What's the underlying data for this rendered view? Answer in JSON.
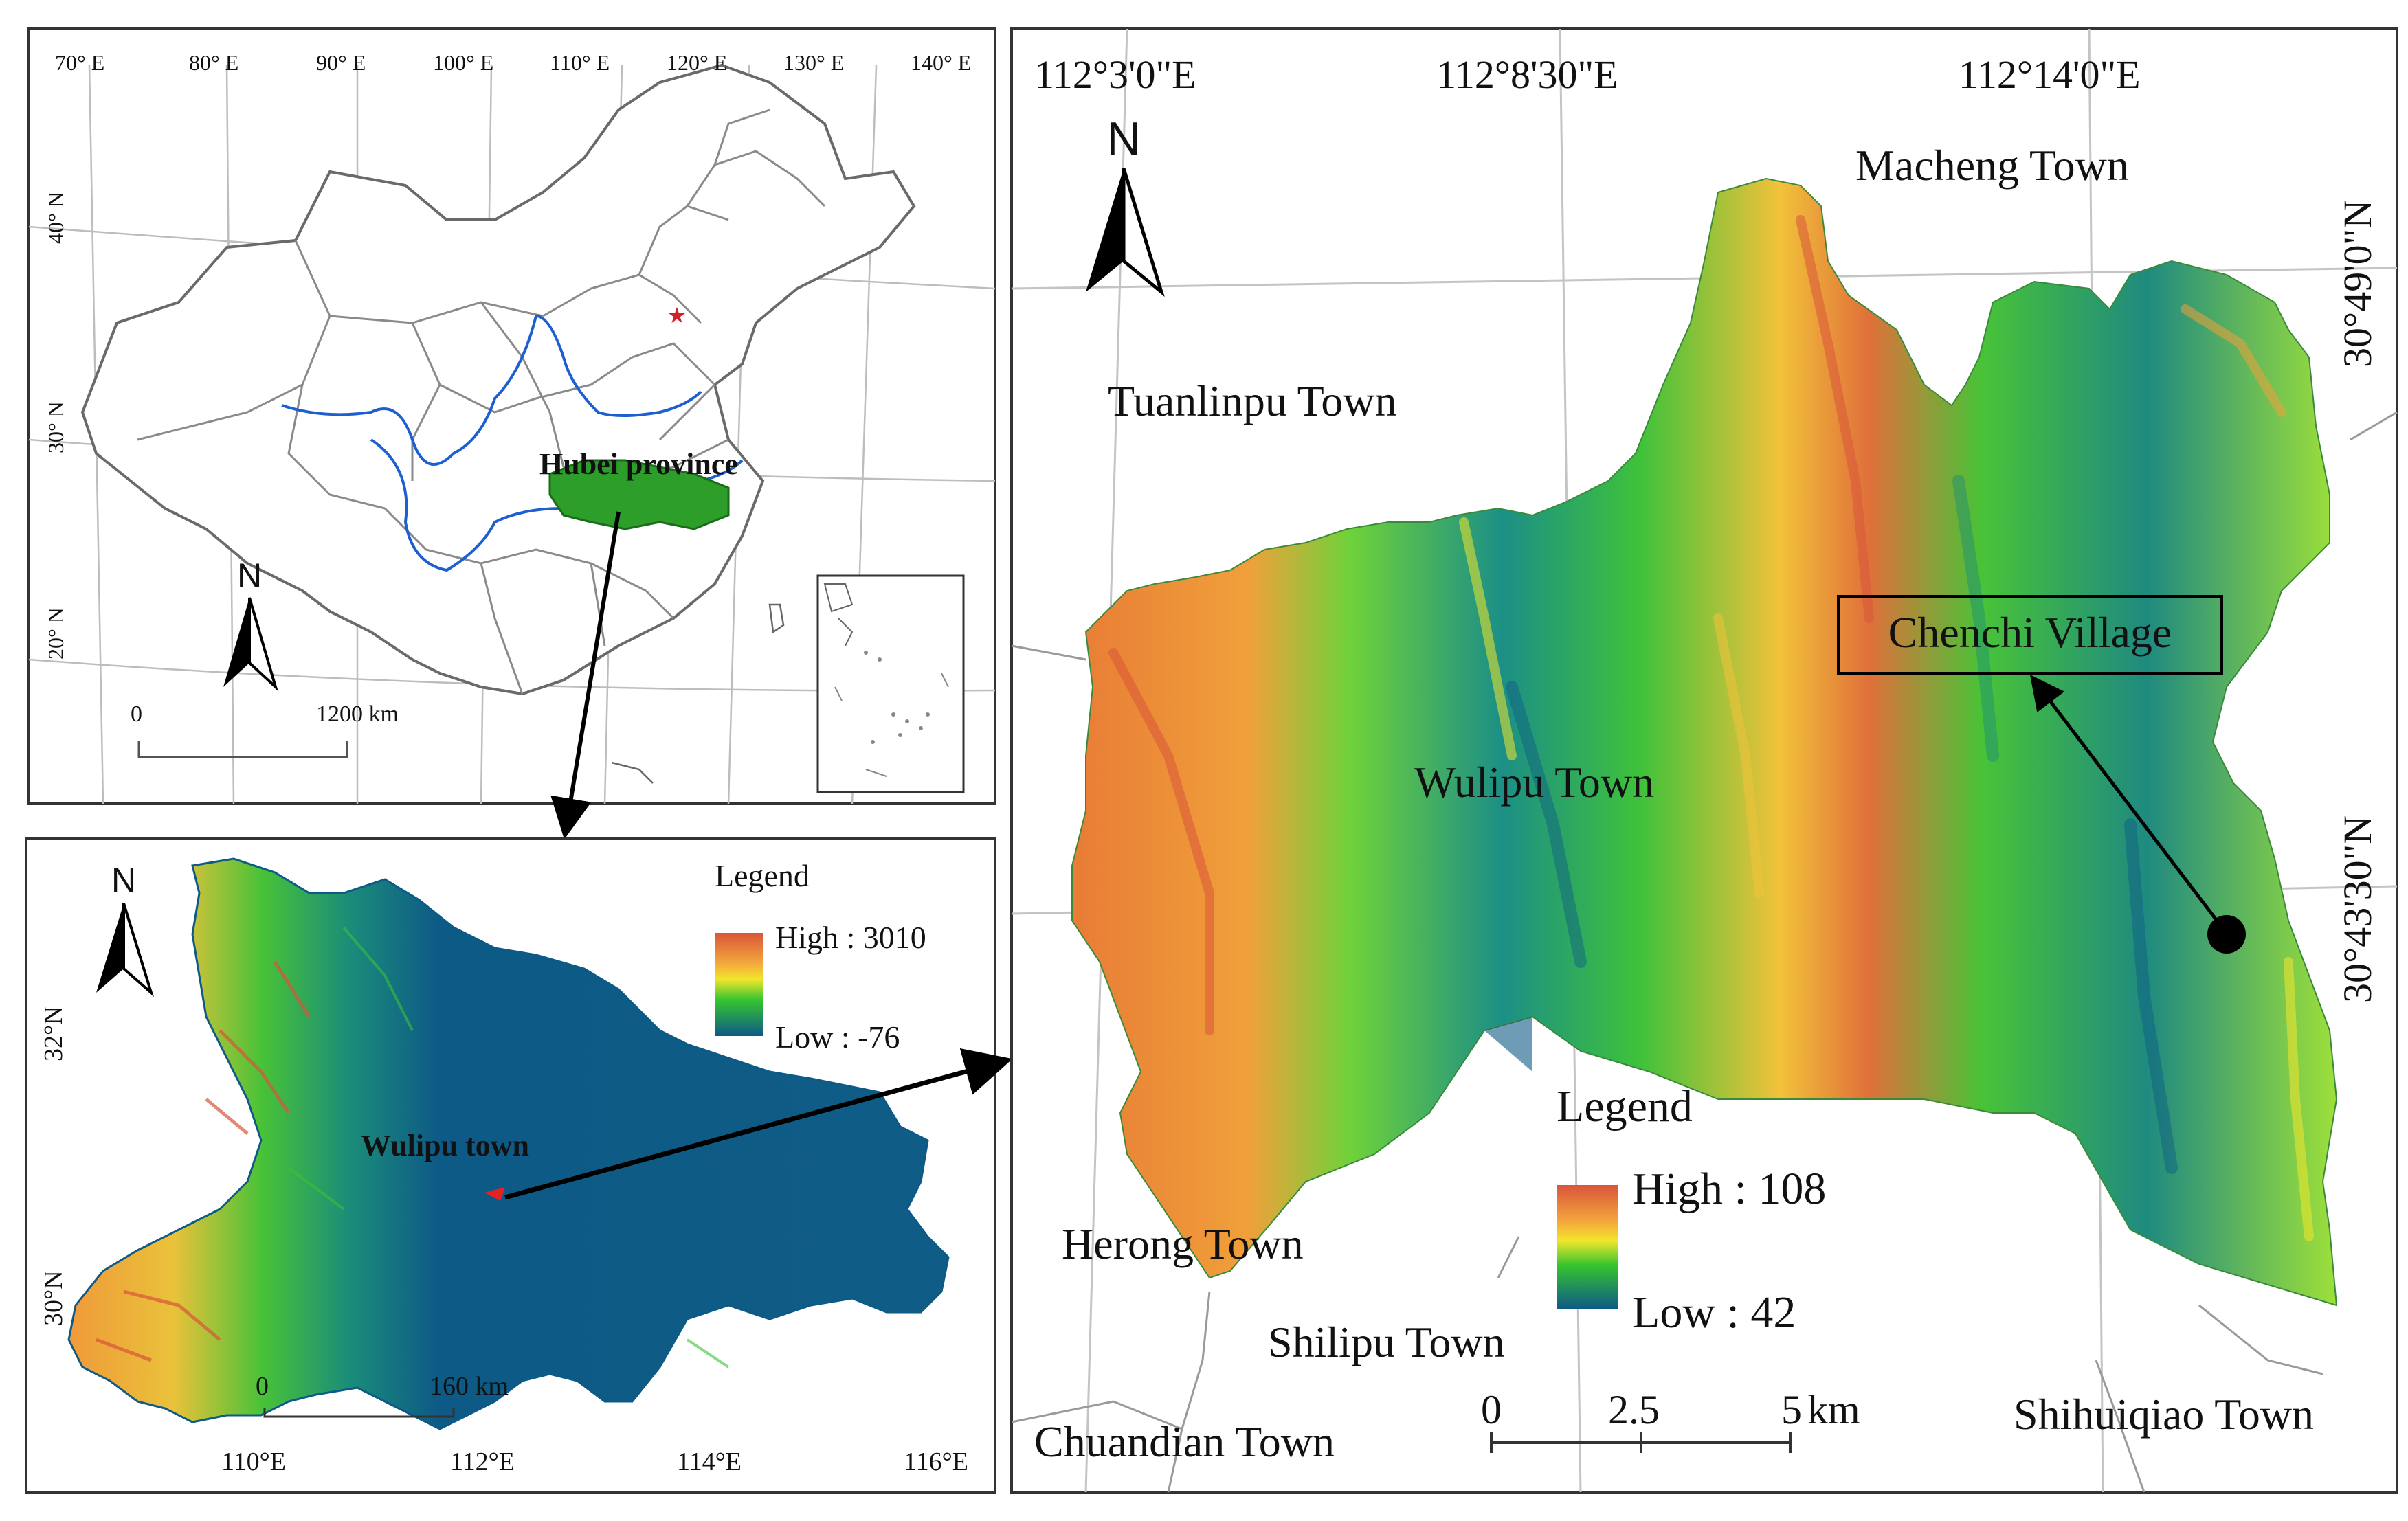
{
  "china_panel": {
    "lon_labels": [
      "70° E",
      "80° E",
      "90° E",
      "100° E",
      "110° E",
      "120° E",
      "130° E",
      "140° E"
    ],
    "lat_labels": [
      "40° N",
      "30° N",
      "20° N"
    ],
    "highlight_label": "Hubei province",
    "north_label": "N",
    "scale_zero": "0",
    "scale_end": "1200 km"
  },
  "hubei_panel": {
    "legend_title": "Legend",
    "legend_high": "High : 3010",
    "legend_low": "Low : -76",
    "site_label": "Wulipu town",
    "north_label": "N",
    "lon_labels": [
      "110°E",
      "112°E",
      "114°E",
      "116°E"
    ],
    "lat_labels": [
      "32°N",
      "30°N"
    ],
    "scale_zero": "0",
    "scale_end": "160 km"
  },
  "wulipu_panel": {
    "lon_labels": [
      "112°3'0\"E",
      "112°8'30\"E",
      "112°14'0\"E"
    ],
    "lat_labels": [
      "30°49'0\"N",
      "30°43'30\"N"
    ],
    "north_label": "N",
    "towns": {
      "macheng": "Macheng Town",
      "tuanlinpu": "Tuanlinpu Town",
      "wulipu": "Wulipu Town",
      "herong": "Herong Town",
      "shilipu": "Shilipu Town",
      "chuandian": "Chuandian Town",
      "shihuiqiao": "Shihuiqiao Town"
    },
    "village_label": "Chenchi Village",
    "legend_title": "Legend",
    "legend_high": "High : 108",
    "legend_low": "Low : 42",
    "scale_labels": [
      "0",
      "2.5",
      "5",
      "km"
    ]
  },
  "colors": {
    "dem_high": "#d9553a",
    "dem_mid_high": "#f4a93c",
    "dem_mid": "#f2e62c",
    "dem_green": "#35c42f",
    "dem_low": "#0e5a86",
    "river": "#1d5fd0",
    "hubei_fill": "#2d9e2a",
    "arrow": "#000000"
  }
}
